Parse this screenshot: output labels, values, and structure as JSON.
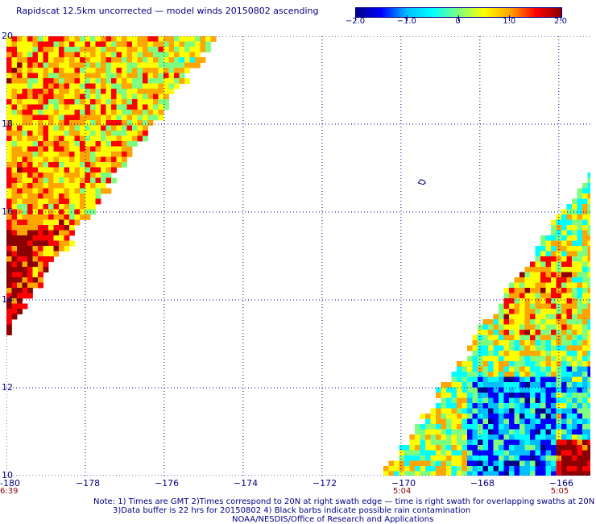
{
  "title": "Rapidscat 12.5km uncorrected — model winds 20150802 ascending",
  "colorbar": {
    "min": -2.0,
    "max": 2.0,
    "tick_values": [
      -2.0,
      -1.0,
      0,
      1.0,
      2.0
    ],
    "tick_labels": [
      "−2.0",
      "−1.0",
      "0",
      "1.0",
      "2.0"
    ],
    "colors": [
      "#00008b",
      "#0000ff",
      "#00bfff",
      "#00ffff",
      "#7fff7f",
      "#ffff00",
      "#ffa500",
      "#ff0000",
      "#8b0000"
    ]
  },
  "map": {
    "lon_range": [
      -180,
      -165.2
    ],
    "lat_range": [
      10,
      20
    ],
    "x_ticks": [
      "-180",
      "−178",
      "−176",
      "−174",
      "−172",
      "−170",
      "−168",
      "−166"
    ],
    "x_tick_values": [
      -180,
      -178,
      -176,
      -174,
      -172,
      -170,
      -168,
      -166
    ],
    "y_ticks": [
      "10",
      "12",
      "14",
      "16",
      "18",
      "20"
    ],
    "y_tick_values": [
      10,
      12,
      14,
      16,
      18,
      20
    ],
    "time_labels": [
      {
        "text": "6:39",
        "lon": -180
      },
      {
        "text": "5:04",
        "lon": -170
      },
      {
        "text": "5:05",
        "lon": -166
      }
    ],
    "grid": "dotted",
    "island_marker": {
      "lon": -169.5,
      "lat": 16.7
    }
  },
  "notes": [
    "Note: 1) Times are GMT 2)Times correspond to 20N at right swath edge — time is right swath for overlapping swaths at 20N",
    "3)Data buffer is 22 hrs for 20150802 4) Black barbs indicate possible rain contamination",
    "NOAA/NESDIS/Office of Research and Applications"
  ]
}
